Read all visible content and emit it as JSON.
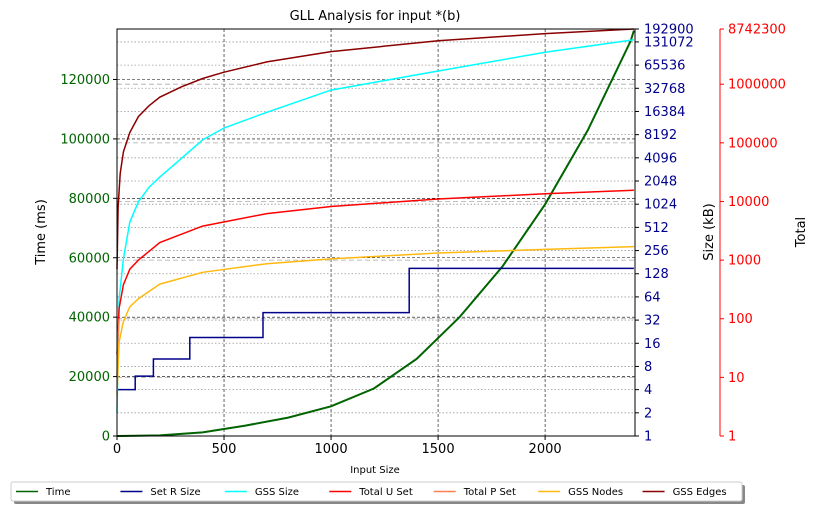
{
  "chart_data": {
    "type": "line",
    "title": "GLL Analysis for input *(b)",
    "xlabel": "Input Size",
    "xlim": [
      0,
      2420
    ],
    "x_ticks": [
      0,
      500,
      1000,
      1500,
      2000
    ],
    "grid": true,
    "legend_position": "bottom",
    "colors": {
      "time": "#006400",
      "size_axis": "#00008b",
      "total_axis": "#ff0000"
    },
    "axes": {
      "time": {
        "label": "Time (ms)",
        "scale": "linear",
        "ylim": [
          0,
          137000
        ],
        "ticks": [
          0,
          20000,
          40000,
          60000,
          80000,
          100000,
          120000
        ]
      },
      "size": {
        "label": "Size (kB)",
        "scale": "log2",
        "ylim": [
          1,
          192900
        ],
        "ticks": [
          "1",
          "2",
          "4",
          "8",
          "16",
          "32",
          "64",
          "128",
          "256",
          "512",
          "1024",
          "2048",
          "4096",
          "8192",
          "16384",
          "32768",
          "65536",
          "131072",
          "192900"
        ]
      },
      "total": {
        "label": "Total",
        "scale": "log10",
        "ylim": [
          1,
          8742300
        ],
        "ticks": [
          "1",
          "10",
          "100",
          "1000",
          "10000",
          "100000",
          "1000000",
          "8742300"
        ]
      }
    },
    "series": [
      {
        "name": "Time",
        "color": "#006400",
        "axis": "time",
        "x": [
          0,
          200,
          400,
          600,
          800,
          1000,
          1200,
          1400,
          1600,
          1800,
          2000,
          2200,
          2400,
          2415
        ],
        "y": [
          0,
          200,
          1200,
          3500,
          6200,
          10000,
          16000,
          26000,
          40000,
          57000,
          78000,
          103000,
          133000,
          136500
        ]
      },
      {
        "name": "Set R Size",
        "color": "#00008b",
        "axis": "size",
        "x": [
          0,
          85,
          85,
          170,
          170,
          340,
          340,
          682,
          682,
          1365,
          1365,
          2415
        ],
        "y": [
          4,
          4,
          6,
          6,
          10,
          10,
          19,
          19,
          40,
          40,
          150,
          150
        ]
      },
      {
        "name": "GSS Size",
        "color": "#00ffff",
        "axis": "size",
        "x": [
          0,
          10,
          30,
          60,
          100,
          150,
          200,
          300,
          400,
          500,
          700,
          1000,
          1500,
          2000,
          2415
        ],
        "y": [
          2,
          60,
          200,
          600,
          1100,
          1700,
          2300,
          4000,
          7000,
          10000,
          16000,
          31000,
          55000,
          96000,
          140000
        ]
      },
      {
        "name": "Total U Set",
        "color": "#ff0000",
        "axis": "total",
        "x": [
          0,
          10,
          30,
          60,
          100,
          200,
          400,
          700,
          1000,
          1500,
          2000,
          2415
        ],
        "y": [
          25,
          150,
          380,
          700,
          1000,
          2000,
          3800,
          6200,
          8200,
          11000,
          13500,
          15500
        ]
      },
      {
        "name": "Total P Set",
        "color": "#ff7f50",
        "axis": "total",
        "x": [
          0,
          5,
          10
        ],
        "y": [
          10,
          50,
          100
        ]
      },
      {
        "name": "GSS Nodes",
        "color": "#ffb90f",
        "axis": "total",
        "x": [
          0,
          10,
          30,
          60,
          100,
          200,
          400,
          700,
          1000,
          1500,
          2000,
          2415
        ],
        "y": [
          5,
          40,
          90,
          160,
          220,
          390,
          620,
          870,
          1050,
          1320,
          1520,
          1700
        ]
      },
      {
        "name": "GSS Edges",
        "color": "#8b0000",
        "axis": "total",
        "x": [
          0,
          5,
          15,
          30,
          60,
          100,
          150,
          200,
          300,
          400,
          500,
          700,
          1000,
          1500,
          2000,
          2415
        ],
        "y": [
          700,
          8000,
          30000,
          70000,
          150000,
          280000,
          430000,
          600000,
          900000,
          1250000,
          1600000,
          2400000,
          3600000,
          5500000,
          7300000,
          8742300
        ]
      }
    ]
  }
}
